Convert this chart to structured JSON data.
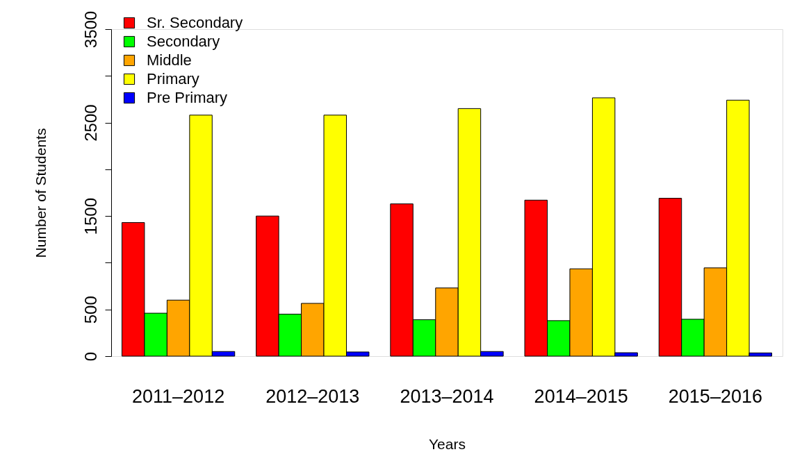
{
  "chart_data": {
    "type": "bar",
    "xlabel": "Years",
    "ylabel": "Number of Students",
    "categories": [
      "2011–2012",
      "2012–2013",
      "2013–2014",
      "2014–2015",
      "2015–2016"
    ],
    "series": [
      {
        "name": "Sr. Secondary",
        "color": "#ff0000",
        "values": [
          1430,
          1500,
          1630,
          1670,
          1690
        ]
      },
      {
        "name": "Secondary",
        "color": "#00ff00",
        "values": [
          460,
          450,
          390,
          380,
          395
        ]
      },
      {
        "name": "Middle",
        "color": "#ffa500",
        "values": [
          600,
          565,
          730,
          935,
          945
        ]
      },
      {
        "name": "Primary",
        "color": "#ffff00",
        "values": [
          2580,
          2580,
          2650,
          2765,
          2740
        ]
      },
      {
        "name": "Pre Primary",
        "color": "#0000ff",
        "values": [
          50,
          45,
          50,
          37,
          35
        ]
      }
    ],
    "ylim": [
      0,
      3500
    ],
    "yticks": [
      0,
      500,
      {
        "value": 1000,
        "label": null
      },
      1500,
      {
        "value": 2000,
        "label": null
      },
      2500,
      {
        "value": 3000,
        "label": null
      },
      3500
    ],
    "grid": false,
    "legend": "top left"
  }
}
